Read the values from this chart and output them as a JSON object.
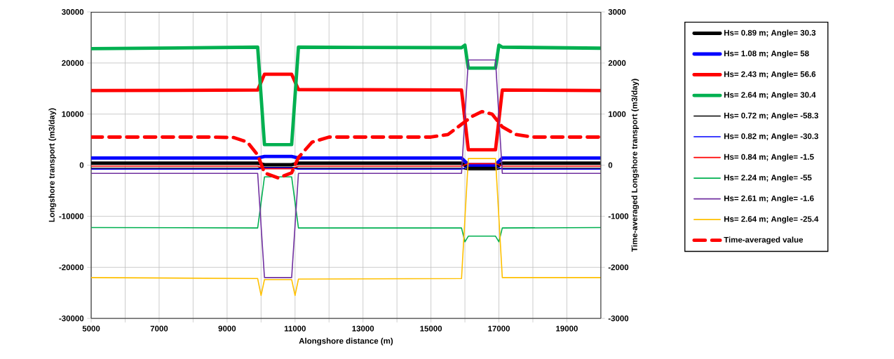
{
  "chart_data": {
    "type": "line",
    "xlabel": "Alongshore distance (m)",
    "ylabel": "Longshore transport (m3/day)",
    "y2label": "Time-averaged Longshore transport (m3/day)",
    "xlim": [
      5000,
      20000
    ],
    "ylim": [
      -30000,
      30000
    ],
    "y2lim": [
      -3000,
      3000
    ],
    "xticks": [
      5000,
      {
        "value": 6000,
        "label": null
      },
      7000,
      {
        "value": 8000,
        "label": null
      },
      9000,
      {
        "value": 10000,
        "label": null
      },
      11000,
      {
        "value": 12000,
        "label": null
      },
      13000,
      {
        "value": 14000,
        "label": null
      },
      15000,
      {
        "value": 16000,
        "label": null
      },
      17000,
      {
        "value": 18000,
        "label": null
      },
      19000
    ],
    "yticks": [
      -30000,
      -20000,
      -10000,
      0,
      10000,
      20000,
      30000
    ],
    "y2ticks": [
      -3000,
      -2000,
      -1000,
      0,
      1000,
      2000,
      3000
    ],
    "grid": true,
    "legend": "right",
    "series": [
      {
        "name": "Hs= 0.89 m; Angle= 30.3",
        "color": "#000000",
        "x": [
          5000,
          9900,
          10100,
          10900,
          11100,
          15900,
          16100,
          16900,
          17100,
          20000
        ],
        "values": [
          400,
          400,
          100,
          100,
          400,
          400,
          -500,
          -500,
          400,
          400
        ]
      },
      {
        "name": "Hs= 1.08 m; Angle= 58",
        "color": "#0000ff",
        "x": [
          5000,
          9900,
          10100,
          10900,
          11100,
          15900,
          16100,
          16900,
          17100,
          20000
        ],
        "values": [
          1400,
          1400,
          1700,
          1700,
          1400,
          1400,
          100,
          100,
          1400,
          1400
        ]
      },
      {
        "name": "Hs= 2.43 m; Angle= 56.6",
        "color": "#ff0000",
        "x": [
          5000,
          9900,
          10100,
          10900,
          11100,
          15900,
          16100,
          16900,
          17100,
          20000
        ],
        "values": [
          14600,
          14700,
          17800,
          17800,
          14800,
          14700,
          3000,
          3000,
          14700,
          14600
        ]
      },
      {
        "name": "Hs= 2.64 m; Angle= 30.4",
        "color": "#00b050",
        "x": [
          5000,
          9900,
          10100,
          10900,
          11100,
          15900,
          16000,
          16100,
          16900,
          17000,
          17100,
          20000
        ],
        "values": [
          22800,
          23100,
          4000,
          4000,
          23100,
          23000,
          23500,
          19000,
          19000,
          23500,
          23100,
          22900
        ]
      },
      {
        "name": "Hs= 0.72 m; Angle= -58.3",
        "color": "#000000",
        "x": [
          5000,
          9900,
          10100,
          10900,
          11100,
          15900,
          16100,
          16900,
          17100,
          20000
        ],
        "values": [
          -600,
          -600,
          -400,
          -400,
          -600,
          -600,
          -900,
          -900,
          -600,
          -600
        ]
      },
      {
        "name": "Hs= 0.82 m; Angle= -30.3",
        "color": "#0000ff",
        "x": [
          5000,
          9900,
          10100,
          10900,
          11100,
          15900,
          16100,
          16900,
          17100,
          20000
        ],
        "values": [
          -800,
          -800,
          -500,
          -500,
          -800,
          -800,
          -200,
          -200,
          -800,
          -800
        ]
      },
      {
        "name": "Hs= 0.84 m; Angle= -1.5",
        "color": "#ff0000",
        "x": [
          5000,
          9900,
          10100,
          10900,
          11100,
          15900,
          16100,
          16900,
          17100,
          20000
        ],
        "values": [
          -200,
          -200,
          -700,
          -700,
          -200,
          -200,
          300,
          300,
          -200,
          -200
        ]
      },
      {
        "name": "Hs= 2.24 m; Angle= -55",
        "color": "#00b050",
        "x": [
          5000,
          9900,
          10100,
          10900,
          11100,
          15900,
          16000,
          16100,
          16900,
          17000,
          17100,
          20000
        ],
        "values": [
          -12200,
          -12300,
          -2300,
          -2300,
          -12300,
          -12300,
          -15000,
          -13900,
          -13900,
          -15000,
          -12300,
          -12200
        ]
      },
      {
        "name": "Hs= 2.61 m; Angle= -1.6",
        "color": "#7030a0",
        "x": [
          5000,
          9900,
          10100,
          10900,
          11100,
          15900,
          16100,
          16900,
          17100,
          20000
        ],
        "values": [
          -1600,
          -1600,
          -22000,
          -22000,
          -1600,
          -1600,
          20600,
          20600,
          -1600,
          -1600
        ]
      },
      {
        "name": "Hs= 2.64 m; Angle= -25.4",
        "color": "#ffc000",
        "x": [
          5000,
          9900,
          10000,
          10100,
          10900,
          11000,
          11100,
          15900,
          16100,
          16900,
          17100,
          20000
        ],
        "values": [
          -22000,
          -22200,
          -25500,
          -22400,
          -22400,
          -25500,
          -22300,
          -22200,
          1300,
          1300,
          -22000,
          -22000
        ]
      },
      {
        "name": "Time-averaged value",
        "color": "#ff0000",
        "axis": "y2",
        "line_style": "dashed",
        "x": [
          5000,
          8500,
          9200,
          9600,
          9900,
          10100,
          10500,
          10900,
          11100,
          11500,
          12000,
          15000,
          15500,
          15900,
          16200,
          16500,
          16800,
          17100,
          17500,
          18000,
          20000
        ],
        "values": [
          550,
          550,
          540,
          450,
          200,
          -150,
          -250,
          -150,
          150,
          450,
          550,
          550,
          600,
          800,
          950,
          1050,
          1000,
          750,
          600,
          550,
          550
        ]
      }
    ]
  }
}
